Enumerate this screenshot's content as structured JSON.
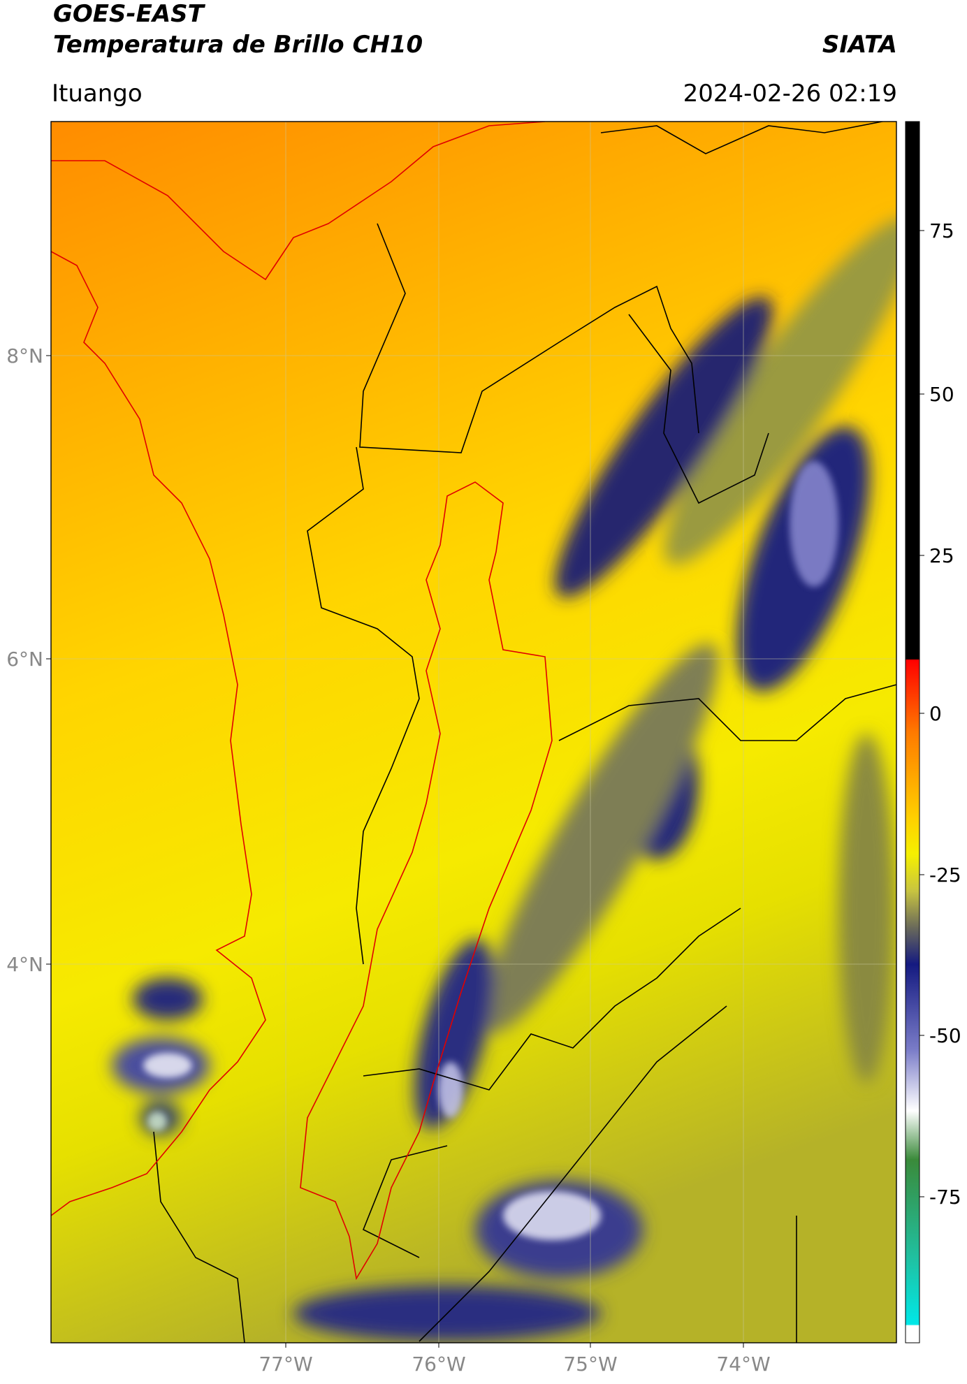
{
  "header": {
    "title": "GOES-EAST",
    "subtitle": "Temperatura de Brillo CH10",
    "brand": "SIATA",
    "location": "Ituango",
    "timestamp": "2024-02-26 02:19"
  },
  "map": {
    "lat_labels": [
      "8°N",
      "6°N",
      "4°N"
    ],
    "lon_labels": [
      "77°W",
      "76°W",
      "75°W",
      "74°W"
    ]
  },
  "colorbar": {
    "tick_labels": [
      "75",
      "50",
      "25",
      "0",
      "-25",
      "-50",
      "-75"
    ]
  }
}
